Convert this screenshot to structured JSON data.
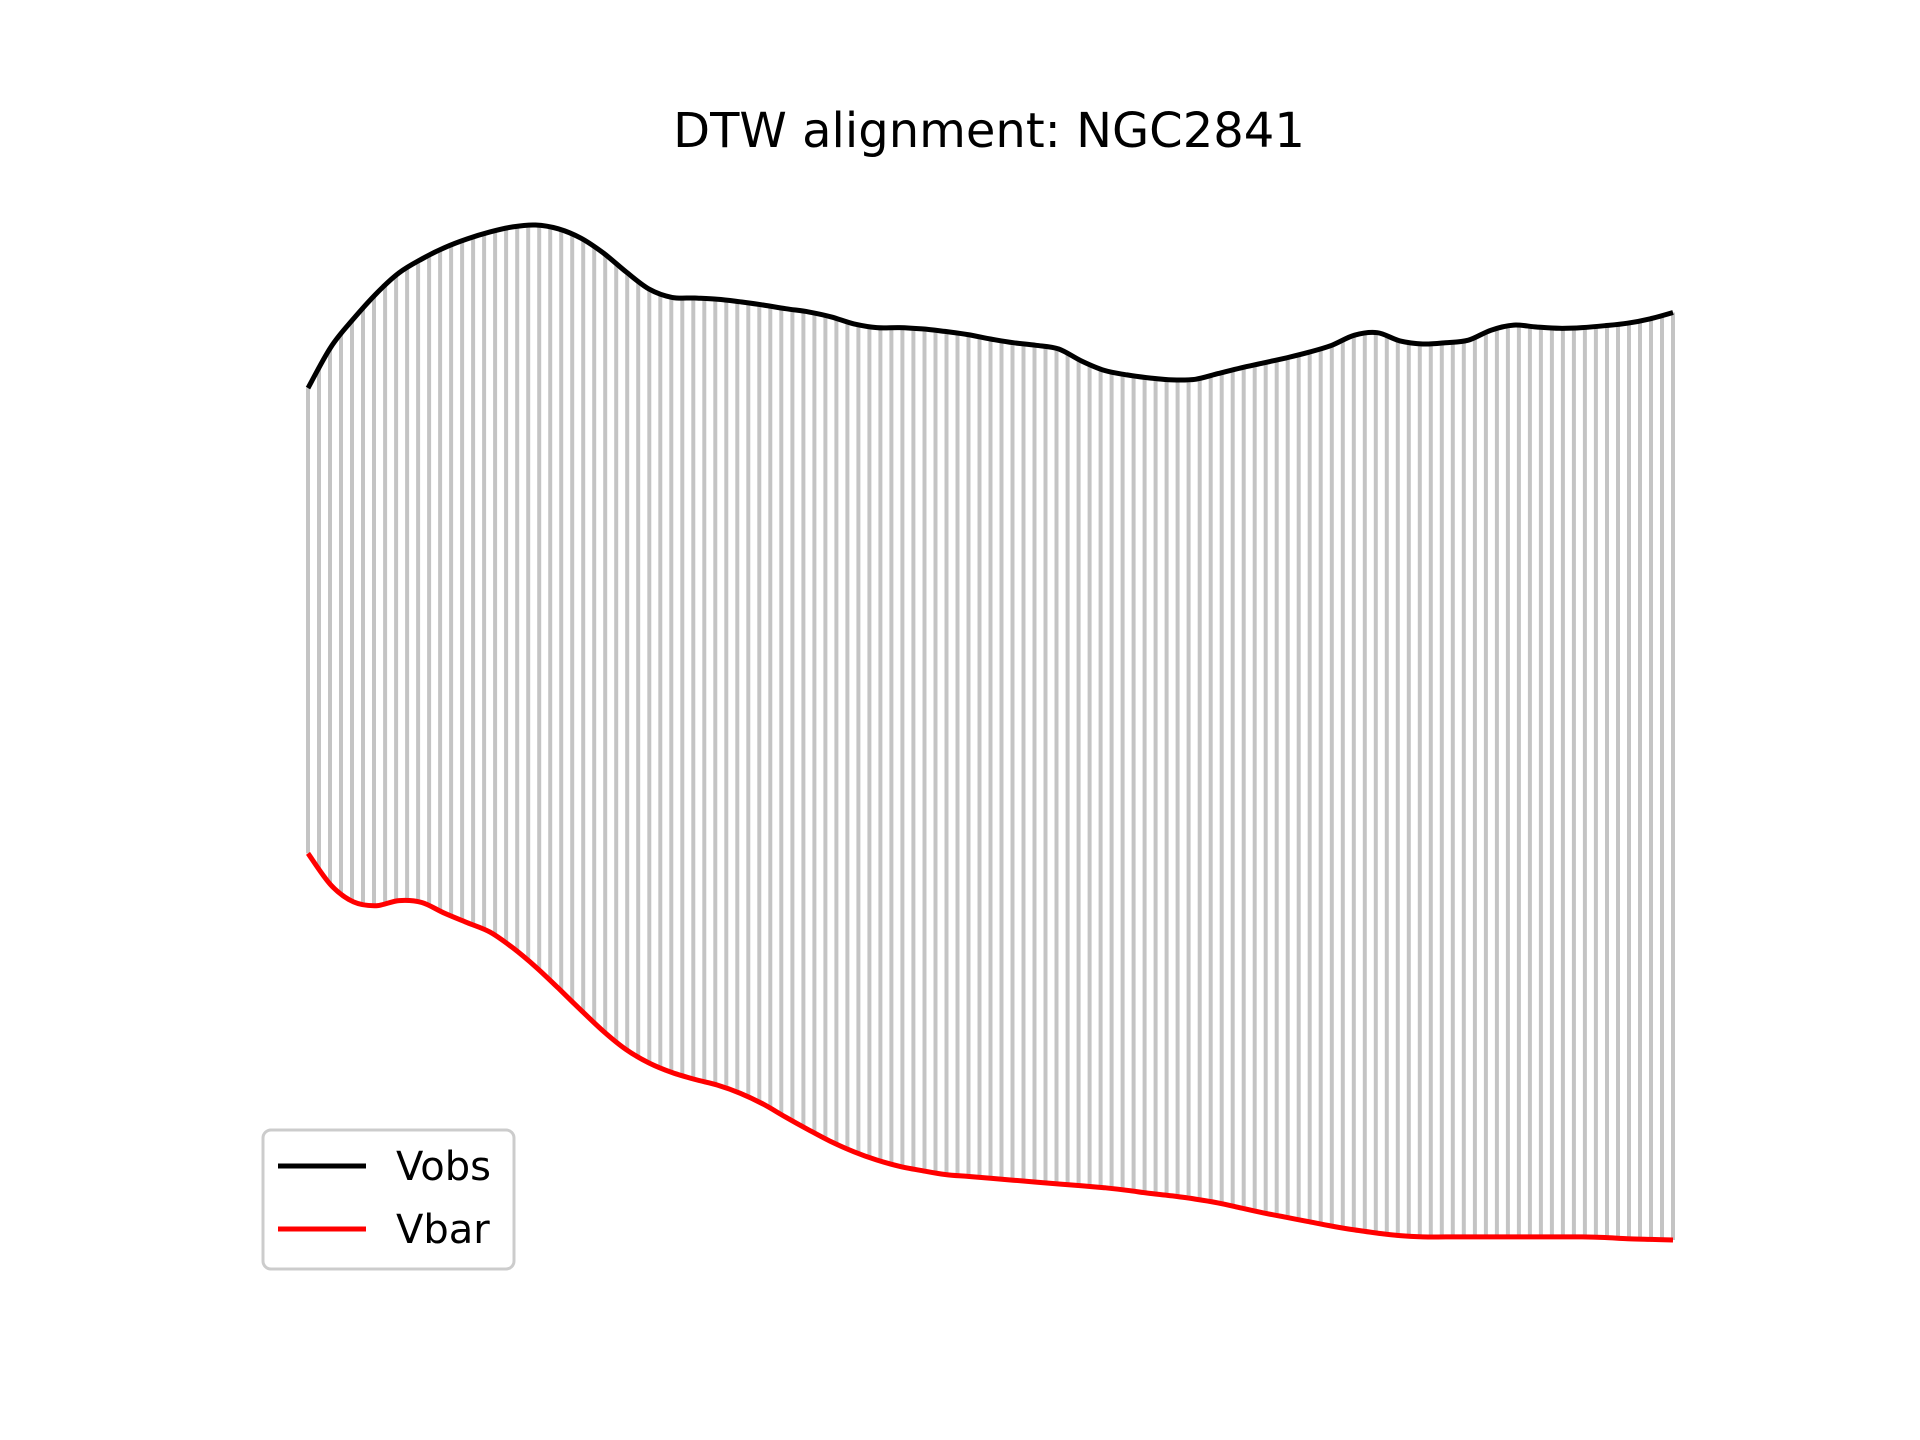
{
  "chart_data": {
    "type": "line",
    "title": "DTW alignment: NGC2841",
    "xlabel": "",
    "ylabel": "",
    "axes_visible": false,
    "grid": false,
    "legend": "lower-left",
    "connector_color": "#c4c4c4",
    "series": [
      {
        "name": "Vobs",
        "color": "#000000",
        "values": [
          0.1,
          0.75,
          1.2,
          1.6,
          1.93,
          2.15,
          2.33,
          2.47,
          2.58,
          2.66,
          2.69,
          2.63,
          2.48,
          2.24,
          1.94,
          1.67,
          1.54,
          1.53,
          1.51,
          1.47,
          1.42,
          1.36,
          1.31,
          1.23,
          1.12,
          1.06,
          1.06,
          1.04,
          1.0,
          0.95,
          0.88,
          0.82,
          0.78,
          0.72,
          0.53,
          0.38,
          0.31,
          0.26,
          0.23,
          0.24,
          0.33,
          0.42,
          0.5,
          0.58,
          0.67,
          0.78,
          0.94,
          0.98,
          0.85,
          0.8,
          0.82,
          0.86,
          1.02,
          1.1,
          1.07,
          1.05,
          1.06,
          1.09,
          1.13,
          1.2,
          1.3
        ]
      },
      {
        "name": "Vbar",
        "color": "#ff0000",
        "values": [
          -7.29,
          -7.79,
          -8.06,
          -8.12,
          -8.04,
          -8.07,
          -8.24,
          -8.39,
          -8.54,
          -8.79,
          -9.09,
          -9.43,
          -9.78,
          -10.12,
          -10.41,
          -10.62,
          -10.77,
          -10.88,
          -10.97,
          -11.1,
          -11.27,
          -11.48,
          -11.68,
          -11.87,
          -12.03,
          -12.16,
          -12.26,
          -12.33,
          -12.39,
          -12.42,
          -12.45,
          -12.48,
          -12.51,
          -12.54,
          -12.57,
          -12.6,
          -12.64,
          -12.69,
          -12.73,
          -12.78,
          -12.84,
          -12.92,
          -13.0,
          -13.07,
          -13.14,
          -13.21,
          -13.27,
          -13.32,
          -13.36,
          -13.38,
          -13.38,
          -13.38,
          -13.38,
          -13.38,
          -13.38,
          -13.38,
          -13.38,
          -13.39,
          -13.41,
          -13.42,
          -13.43
        ]
      }
    ]
  }
}
